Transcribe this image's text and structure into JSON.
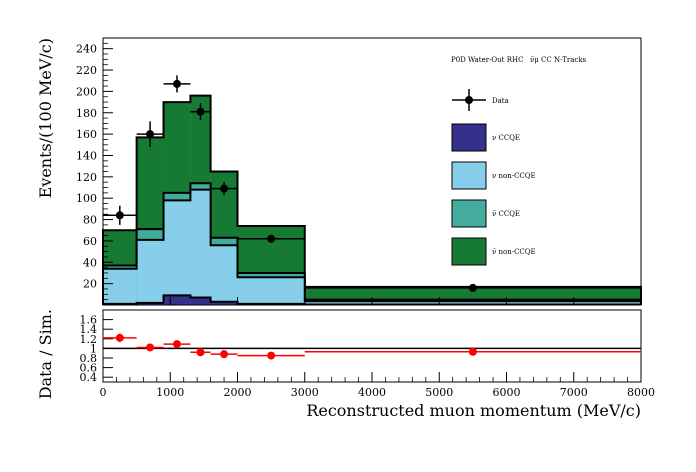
{
  "chart_data": {
    "type": "bar",
    "stacked": true,
    "annotation": "P0D Water-Out RHC",
    "annotation_selection": "ν̅μ CC N-Tracks",
    "xlabel": "Reconstructed muon momentum (MeV/c)",
    "ylabel": "Events/(100 MeV/c)",
    "ratio_ylabel": "Data / Sim.",
    "xlim": [
      0,
      8000
    ],
    "ylim": [
      0,
      250
    ],
    "ratio_ylim": [
      0.3,
      1.8
    ],
    "xticks": [
      0,
      1000,
      2000,
      3000,
      4000,
      5000,
      6000,
      7000,
      8000
    ],
    "yticks": [
      20,
      40,
      60,
      80,
      100,
      120,
      140,
      160,
      180,
      200,
      220,
      240
    ],
    "ratio_yticks": [
      0.4,
      0.6,
      0.8,
      1.0,
      1.2,
      1.4,
      1.6
    ],
    "ratio_yticklabels": [
      "0.4",
      "0.6",
      "0.8",
      "1",
      "1.2",
      "1.4",
      "1.6"
    ],
    "legend_position": "right",
    "bin_edges": [
      0,
      500,
      900,
      1300,
      1600,
      2000,
      3000,
      8000
    ],
    "series": [
      {
        "name": "ν CCQE",
        "color": "#35308c",
        "values": [
          1,
          2,
          9,
          7,
          3,
          1,
          0.5
        ]
      },
      {
        "name": "ν non-CCQE",
        "color": "#87ceeb",
        "values": [
          33,
          59,
          89,
          101,
          53,
          25,
          3
        ]
      },
      {
        "name": "ν̅ CCQE",
        "color": "#43ac9c",
        "values": [
          3,
          10,
          7,
          6,
          7,
          4,
          1.5
        ]
      },
      {
        "name": "ν̅ non-CCQE",
        "color": "#167a35",
        "values": [
          33,
          86,
          85,
          82,
          62,
          44,
          12
        ]
      }
    ],
    "data": {
      "name": "Data",
      "x": [
        250,
        700,
        1100,
        1450,
        1800,
        2500,
        5500
      ],
      "xerr": [
        250,
        200,
        200,
        150,
        200,
        500,
        2500
      ],
      "y": [
        84,
        160,
        207,
        181,
        109,
        62,
        16
      ],
      "yerr": [
        9,
        12,
        8,
        8,
        6,
        3,
        1
      ]
    },
    "ratio": {
      "x": [
        250,
        700,
        1100,
        1450,
        1800,
        2500,
        5500
      ],
      "xerr": [
        250,
        200,
        200,
        150,
        200,
        500,
        2500
      ],
      "y": [
        1.22,
        1.02,
        1.09,
        0.92,
        0.88,
        0.85,
        0.93
      ],
      "yerr": [
        0.09,
        0.06,
        0.05,
        0.05,
        0.05,
        0.04,
        0.04
      ],
      "color": "#ff0000"
    }
  }
}
